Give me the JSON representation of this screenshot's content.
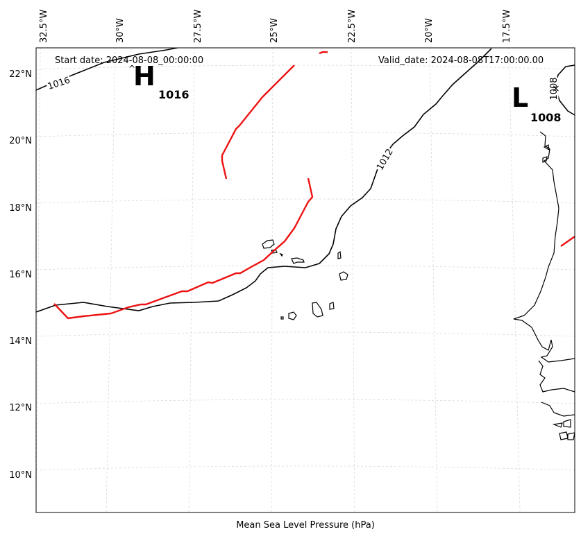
{
  "map": {
    "start_date": "Start date: 2024-08-08_00:00:00",
    "valid_date": "Valid_date: 2024-08-08T17:00:00.00",
    "caption": "Mean Sea Level Pressure (hPa)",
    "longitude_labels": [
      "32.5°W",
      "30°W",
      "27.5°W",
      "25°W",
      "22.5°W",
      "20°W",
      "17.5°W"
    ],
    "latitude_labels": [
      "22°N",
      "20°N",
      "18°N",
      "16°N",
      "14°N",
      "12°N",
      "10°N"
    ],
    "high": {
      "letter": "H",
      "value": "1016"
    },
    "low": {
      "letter": "L",
      "value": "1008"
    },
    "isobar_labels": [
      "1016",
      "1012",
      "1008"
    ],
    "colors": {
      "isobar": "#000000",
      "front": "#ee1111",
      "grid": "#d8d8d8"
    }
  }
}
